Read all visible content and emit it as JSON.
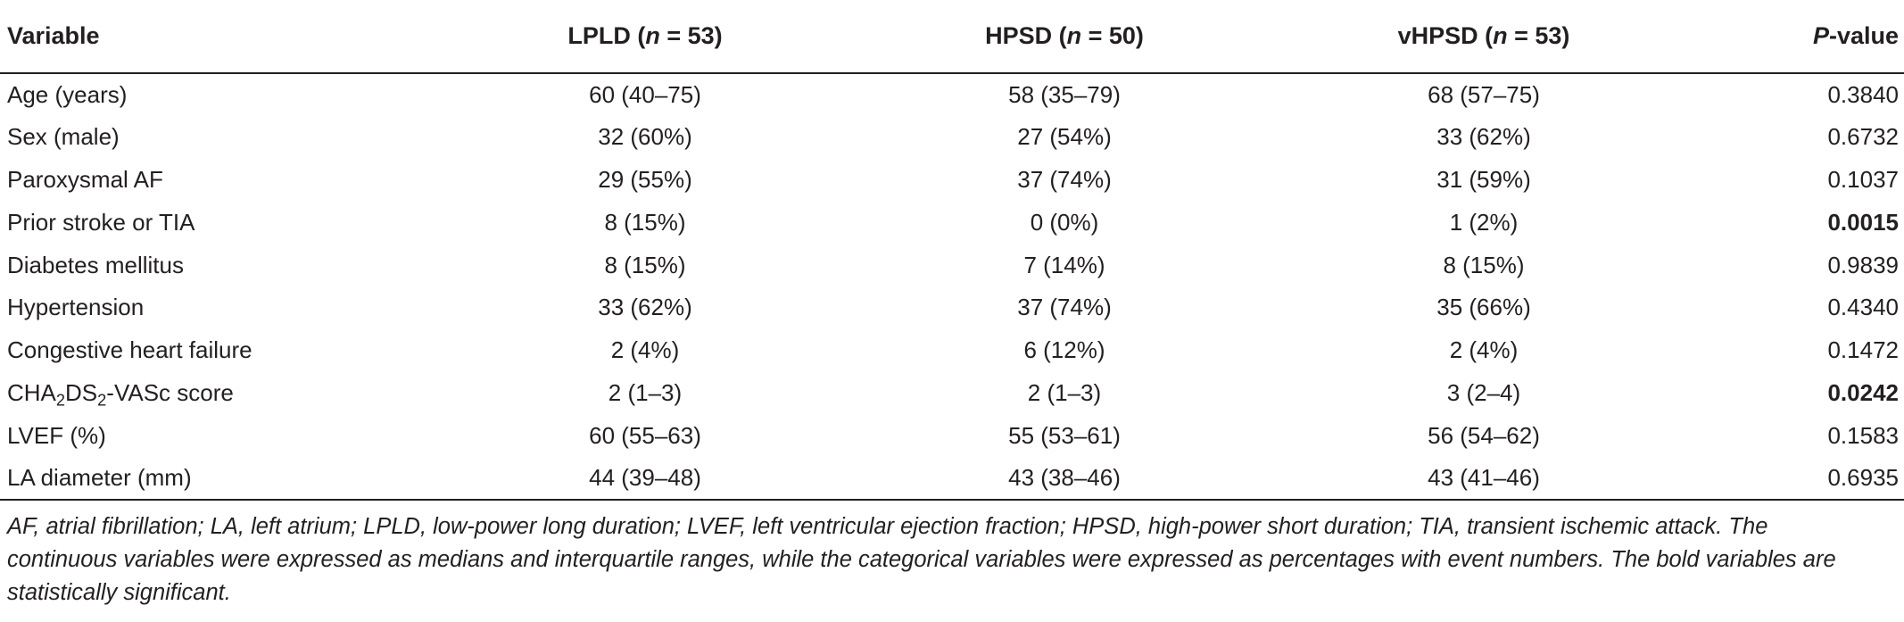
{
  "table": {
    "headers": {
      "variable": "Variable",
      "lpld": {
        "name": "LPLD (",
        "n_italic": "n",
        "rest": " = 53)"
      },
      "hpsd": {
        "name": "HPSD (",
        "n_italic": "n",
        "rest": " = 50)"
      },
      "vhpsd": {
        "name": "vHPSD (",
        "n_italic": "n",
        "rest": " = 53)"
      },
      "pvalue": {
        "p_italic": "P",
        "rest": "-value"
      }
    },
    "rows": [
      {
        "variable": "Age (years)",
        "lpld": "60 (40–75)",
        "hpsd": "58 (35–79)",
        "vhpsd": "68 (57–75)",
        "p": "0.3840",
        "significant": false
      },
      {
        "variable": "Sex (male)",
        "lpld": "32 (60%)",
        "hpsd": "27 (54%)",
        "vhpsd": "33 (62%)",
        "p": "0.6732",
        "significant": false
      },
      {
        "variable": "Paroxysmal AF",
        "lpld": "29 (55%)",
        "hpsd": "37 (74%)",
        "vhpsd": "31 (59%)",
        "p": "0.1037",
        "significant": false
      },
      {
        "variable": "Prior stroke or TIA",
        "lpld": "8 (15%)",
        "hpsd": "0 (0%)",
        "vhpsd": "1 (2%)",
        "p": "0.0015",
        "significant": true
      },
      {
        "variable": "Diabetes mellitus",
        "lpld": "8 (15%)",
        "hpsd": "7 (14%)",
        "vhpsd": "8 (15%)",
        "p": "0.9839",
        "significant": false
      },
      {
        "variable": "Hypertension",
        "lpld": "33 (62%)",
        "hpsd": "37 (74%)",
        "vhpsd": "35 (66%)",
        "p": "0.4340",
        "significant": false
      },
      {
        "variable": "Congestive heart failure",
        "lpld": "2 (4%)",
        "hpsd": "6 (12%)",
        "vhpsd": "2 (4%)",
        "p": "0.1472",
        "significant": false
      },
      {
        "variable_parts": [
          "CHA",
          "2",
          "DS",
          "2",
          "-VASc score"
        ],
        "lpld": "2 (1–3)",
        "hpsd": "2 (1–3)",
        "vhpsd": "3 (2–4)",
        "p": "0.0242",
        "significant": true
      },
      {
        "variable": "LVEF (%)",
        "lpld": "60 (55–63)",
        "hpsd": "55 (53–61)",
        "vhpsd": "56 (54–62)",
        "p": "0.1583",
        "significant": false
      },
      {
        "variable": "LA diameter (mm)",
        "lpld": "44 (39–48)",
        "hpsd": "43 (38–46)",
        "vhpsd": "43 (41–46)",
        "p": "0.6935",
        "significant": false
      }
    ]
  },
  "footnote": "AF, atrial fibrillation; LA, left atrium; LPLD, low-power long duration; LVEF, left ventricular ejection fraction; HPSD, high-power short duration; TIA, transient ischemic attack. The continuous variables were expressed as medians and interquartile ranges, while the categorical variables were expressed as percentages with event numbers. The bold variables are statistically significant."
}
